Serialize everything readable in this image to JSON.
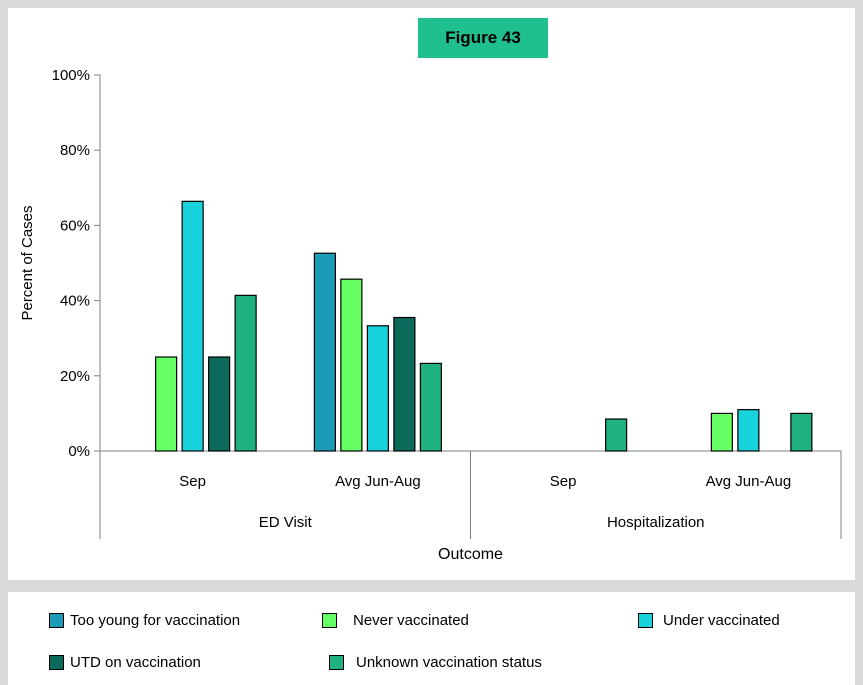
{
  "figure_label": "Figure 43",
  "colors": {
    "badge": "#1fbf8f",
    "too_young": "#1a9bb8",
    "never": "#66ff66",
    "under": "#19d3dc",
    "utd": "#0b6b5a",
    "unknown": "#1fb27f"
  },
  "chart_data": {
    "type": "bar",
    "title": "",
    "xlabel": "Outcome",
    "ylabel": "Percent of Cases",
    "ylim": [
      0,
      100
    ],
    "yticks": [
      "0%",
      "20%",
      "40%",
      "60%",
      "80%",
      "100%"
    ],
    "groups": [
      {
        "name": "ED Visit",
        "categories": [
          "Sep",
          "Avg Jun-Aug"
        ]
      },
      {
        "name": "Hospitalization",
        "categories": [
          "Sep",
          "Avg Jun-Aug"
        ]
      }
    ],
    "categories": [
      "Sep",
      "Avg Jun-Aug",
      "Sep",
      "Avg Jun-Aug"
    ],
    "series": [
      {
        "name": "Too young for vaccination",
        "color_key": "too_young",
        "values": [
          0,
          52.6,
          0,
          0
        ]
      },
      {
        "name": "Never vaccinated",
        "color_key": "never",
        "values": [
          25,
          45.7,
          0,
          10
        ]
      },
      {
        "name": "Under vaccinated",
        "color_key": "under",
        "values": [
          66.4,
          33.3,
          0,
          11
        ]
      },
      {
        "name": "UTD on vaccination",
        "color_key": "utd",
        "values": [
          25,
          35.5,
          0,
          0
        ]
      },
      {
        "name": "Unknown vaccination status",
        "color_key": "unknown",
        "values": [
          41.4,
          23.3,
          8.5,
          10
        ]
      }
    ],
    "grid": false,
    "legend_position": "bottom"
  }
}
